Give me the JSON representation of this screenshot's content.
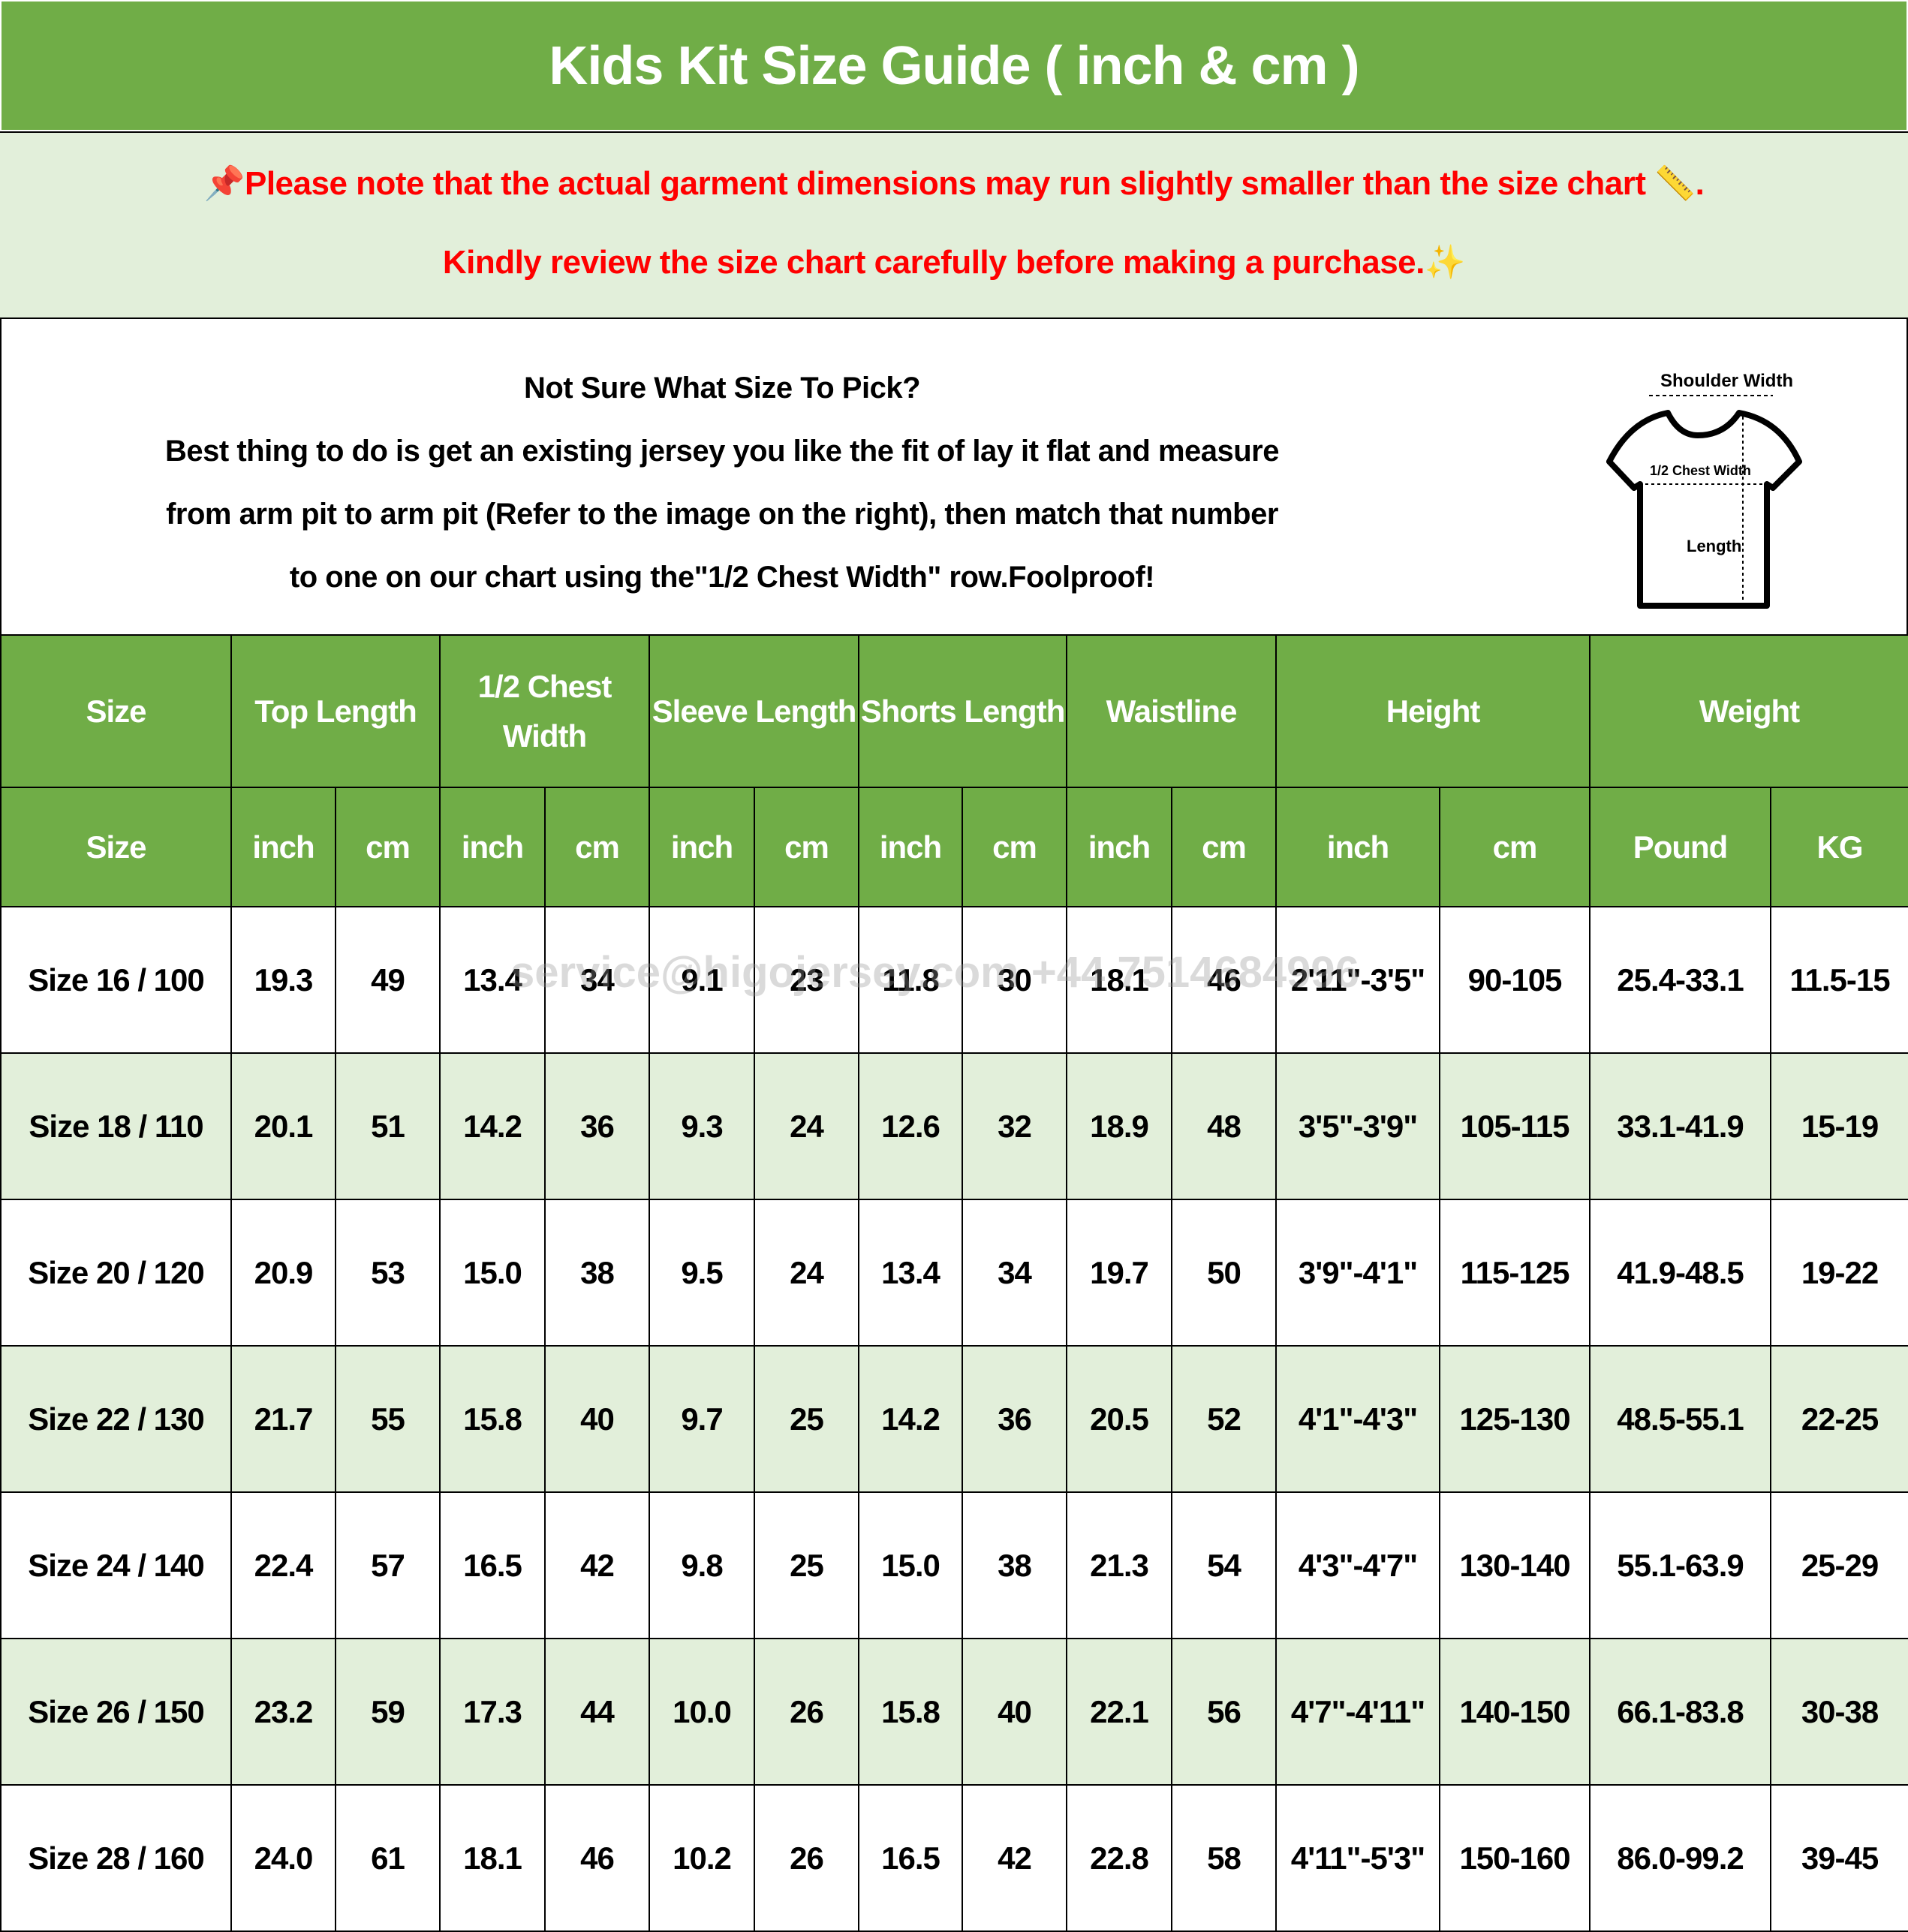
{
  "title": "Kids Kit Size Guide ( inch & cm )",
  "note": {
    "line1": "Please note that the actual garment dimensions may run slightly smaller than the size chart",
    "line1_end": ".",
    "line2": "Kindly review the size chart carefully before making a purchase.",
    "pin_icon": "pushpin",
    "ruler_icon": "ruler",
    "sparkle_icon": "sparkles",
    "color": "#ff0000"
  },
  "info": {
    "heading": "Not Sure What Size To Pick?",
    "line1": "Best thing to do is get an existing jersey you like the fit of lay it flat and measure",
    "line2": "from arm pit to arm pit (Refer to the image on the right), then match that number",
    "line3": "to one on our chart using the\"1/2 Chest Width\" row.Foolproof!"
  },
  "diagram": {
    "shoulder": "Shoulder Width",
    "chest": "1/2 Chest Width",
    "length": "Length"
  },
  "colors": {
    "header_green": "#70ad47",
    "alt_row": "#e2efda"
  },
  "watermark": "service@higojersey.com  +44 7514684996",
  "table": {
    "groups": [
      "Size",
      "Top Length",
      "1/2 Chest Width",
      "Sleeve Length",
      "Shorts Length",
      "Waistline",
      "Height",
      "Weight"
    ],
    "units": [
      "Size",
      "inch",
      "cm",
      "inch",
      "cm",
      "inch",
      "cm",
      "inch",
      "cm",
      "inch",
      "cm",
      "inch",
      "cm",
      "Pound",
      "KG"
    ],
    "rows": [
      [
        "Size 16 / 100",
        "19.3",
        "49",
        "13.4",
        "34",
        "9.1",
        "23",
        "11.8",
        "30",
        "18.1",
        "46",
        "2'11\"-3'5\"",
        "90-105",
        "25.4-33.1",
        "11.5-15"
      ],
      [
        "Size 18 / 110",
        "20.1",
        "51",
        "14.2",
        "36",
        "9.3",
        "24",
        "12.6",
        "32",
        "18.9",
        "48",
        "3'5\"-3'9\"",
        "105-115",
        "33.1-41.9",
        "15-19"
      ],
      [
        "Size 20 / 120",
        "20.9",
        "53",
        "15.0",
        "38",
        "9.5",
        "24",
        "13.4",
        "34",
        "19.7",
        "50",
        "3'9\"-4'1\"",
        "115-125",
        "41.9-48.5",
        "19-22"
      ],
      [
        "Size 22 / 130",
        "21.7",
        "55",
        "15.8",
        "40",
        "9.7",
        "25",
        "14.2",
        "36",
        "20.5",
        "52",
        "4'1\"-4'3\"",
        "125-130",
        "48.5-55.1",
        "22-25"
      ],
      [
        "Size 24 / 140",
        "22.4",
        "57",
        "16.5",
        "42",
        "9.8",
        "25",
        "15.0",
        "38",
        "21.3",
        "54",
        "4'3\"-4'7\"",
        "130-140",
        "55.1-63.9",
        "25-29"
      ],
      [
        "Size 26 / 150",
        "23.2",
        "59",
        "17.3",
        "44",
        "10.0",
        "26",
        "15.8",
        "40",
        "22.1",
        "56",
        "4'7\"-4'11\"",
        "140-150",
        "66.1-83.8",
        "30-38"
      ],
      [
        "Size 28 / 160",
        "24.0",
        "61",
        "18.1",
        "46",
        "10.2",
        "26",
        "16.5",
        "42",
        "22.8",
        "58",
        "4'11\"-5'3\"",
        "150-160",
        "86.0-99.2",
        "39-45"
      ]
    ]
  }
}
